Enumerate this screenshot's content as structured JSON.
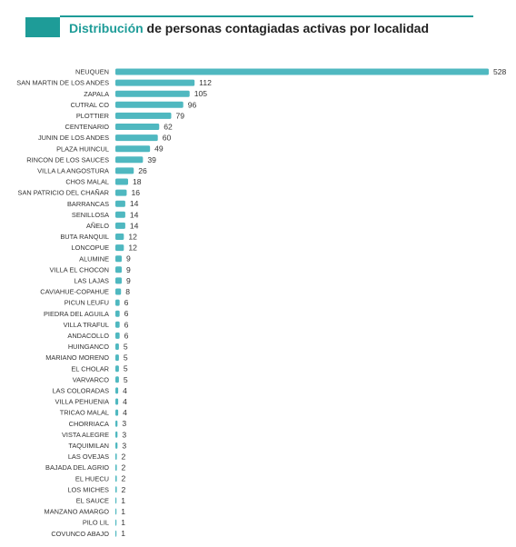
{
  "header": {
    "title_accent": "Distribución",
    "title_rest": " de personas contagiadas activas por localidad",
    "accent_color": "#1e9c98"
  },
  "chart_data": {
    "type": "bar",
    "orientation": "horizontal",
    "title": "Distribución de personas contagiadas activas por localidad",
    "xlabel": "",
    "ylabel": "",
    "bar_color": "#4fb8c0",
    "data_labels": true,
    "grid": false,
    "xlim": [
      0,
      528
    ],
    "categories": [
      "NEUQUEN",
      "SAN MARTIN DE LOS ANDES",
      "ZAPALA",
      "CUTRAL CO",
      "PLOTTIER",
      "CENTENARIO",
      "JUNIN DE LOS ANDES",
      "PLAZA HUINCUL",
      "RINCON DE LOS SAUCES",
      "VILLA LA ANGOSTURA",
      "CHOS MALAL",
      "SAN PATRICIO DEL CHAÑAR",
      "BARRANCAS",
      "SENILLOSA",
      "AÑELO",
      "BUTA RANQUIL",
      "LONCOPUE",
      "ALUMINE",
      "VILLA EL CHOCON",
      "LAS LAJAS",
      "CAVIAHUE-COPAHUE",
      "PICUN LEUFU",
      "PIEDRA DEL AGUILA",
      "VILLA TRAFUL",
      "ANDACOLLO",
      "HUINGANCO",
      "MARIANO MORENO",
      "EL CHOLAR",
      "VARVARCO",
      "LAS COLORADAS",
      "VILLA PEHUENIA",
      "TRICAO MALAL",
      "CHORRIACA",
      "VISTA ALEGRE",
      "TAQUIMILAN",
      "LAS OVEJAS",
      "BAJADA DEL AGRIO",
      "EL HUECU",
      "LOS MICHES",
      "EL SAUCE",
      "MANZANO AMARGO",
      "PILO LIL",
      "COVUNCO ABAJO"
    ],
    "values": [
      528,
      112,
      105,
      96,
      79,
      62,
      60,
      49,
      39,
      26,
      18,
      16,
      14,
      14,
      14,
      12,
      12,
      9,
      9,
      9,
      8,
      6,
      6,
      6,
      6,
      5,
      5,
      5,
      5,
      4,
      4,
      4,
      3,
      3,
      3,
      2,
      2,
      2,
      2,
      1,
      1,
      1,
      1
    ]
  }
}
